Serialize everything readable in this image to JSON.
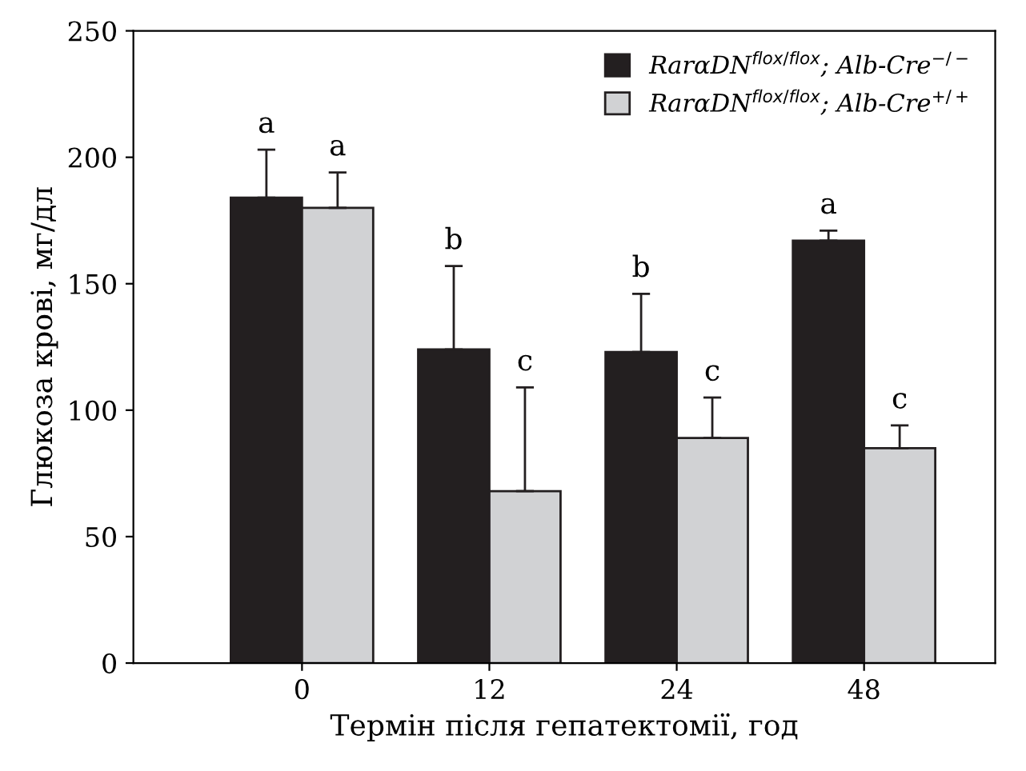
{
  "chart_data": {
    "type": "bar",
    "xlabel": "Термін після гепатектомії, год",
    "ylabel": "Глюкоза крові, мг/дл",
    "categories": [
      "0",
      "12",
      "24",
      "48"
    ],
    "series": [
      {
        "name": "RarαDN$^{flox/flox}$; Alb-Cre$^{−/−}$",
        "color": "#231f20",
        "values": [
          184,
          124,
          123,
          167
        ],
        "errors": [
          [
            184,
            203
          ],
          [
            124,
            157
          ],
          [
            123,
            146
          ],
          [
            167,
            171
          ]
        ]
      },
      {
        "name": "RarαDN$^{flox/flox}$; Alb-Cre$^{+/+}$",
        "color": "#d1d2d4",
        "values": [
          180,
          68,
          89,
          85
        ],
        "errors": [
          [
            180,
            194
          ],
          [
            68,
            109
          ],
          [
            89,
            105
          ],
          [
            85,
            94
          ]
        ]
      }
    ],
    "ylim": [
      0,
      250
    ],
    "yticks": [
      0,
      50,
      100,
      150,
      200,
      250
    ],
    "grid": false,
    "legend": "top right",
    "annotations": [
      "a",
      "a",
      "b",
      "c",
      "b",
      "c",
      "a",
      "c"
    ]
  }
}
